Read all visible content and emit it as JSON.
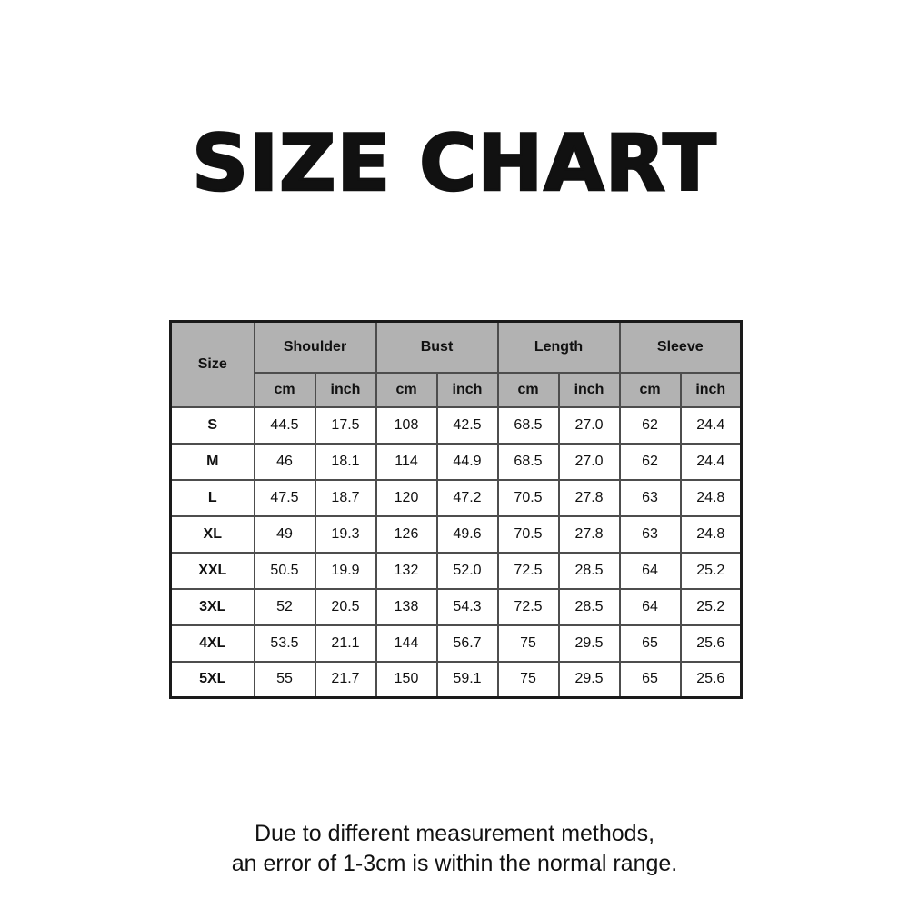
{
  "title": "SIZE CHART",
  "size_table": {
    "corner_header": "Size",
    "group_headers": [
      "Shoulder",
      "Bust",
      "Length",
      "Sleeve"
    ],
    "unit_headers": [
      "cm",
      "inch",
      "cm",
      "inch",
      "cm",
      "inch",
      "cm",
      "inch"
    ],
    "rows": [
      {
        "size": "S",
        "values": [
          "44.5",
          "17.5",
          "108",
          "42.5",
          "68.5",
          "27.0",
          "62",
          "24.4"
        ]
      },
      {
        "size": "M",
        "values": [
          "46",
          "18.1",
          "114",
          "44.9",
          "68.5",
          "27.0",
          "62",
          "24.4"
        ]
      },
      {
        "size": "L",
        "values": [
          "47.5",
          "18.7",
          "120",
          "47.2",
          "70.5",
          "27.8",
          "63",
          "24.8"
        ]
      },
      {
        "size": "XL",
        "values": [
          "49",
          "19.3",
          "126",
          "49.6",
          "70.5",
          "27.8",
          "63",
          "24.8"
        ]
      },
      {
        "size": "XXL",
        "values": [
          "50.5",
          "19.9",
          "132",
          "52.0",
          "72.5",
          "28.5",
          "64",
          "25.2"
        ]
      },
      {
        "size": "3XL",
        "values": [
          "52",
          "20.5",
          "138",
          "54.3",
          "72.5",
          "28.5",
          "64",
          "25.2"
        ]
      },
      {
        "size": "4XL",
        "values": [
          "53.5",
          "21.1",
          "144",
          "56.7",
          "75",
          "29.5",
          "65",
          "25.6"
        ]
      },
      {
        "size": "5XL",
        "values": [
          "55",
          "21.7",
          "150",
          "59.1",
          "75",
          "29.5",
          "65",
          "25.6"
        ]
      }
    ]
  },
  "footer": {
    "line1": "Due to different measurement methods,",
    "line2": "an error of 1-3cm is within the normal range."
  },
  "colors": {
    "header_bg": "#b2b2b2",
    "grid_border": "#4d4d4d",
    "outer_border": "#1a1a1a",
    "text": "#111111",
    "background": "#ffffff"
  },
  "chart_data": {
    "type": "table",
    "title": "SIZE CHART",
    "columns": [
      "Size",
      "Shoulder (cm)",
      "Shoulder (inch)",
      "Bust (cm)",
      "Bust (inch)",
      "Length (cm)",
      "Length (inch)",
      "Sleeve (cm)",
      "Sleeve (inch)"
    ],
    "rows": [
      [
        "S",
        44.5,
        17.5,
        108,
        42.5,
        68.5,
        27.0,
        62,
        24.4
      ],
      [
        "M",
        46,
        18.1,
        114,
        44.9,
        68.5,
        27.0,
        62,
        24.4
      ],
      [
        "L",
        47.5,
        18.7,
        120,
        47.2,
        70.5,
        27.8,
        63,
        24.8
      ],
      [
        "XL",
        49,
        19.3,
        126,
        49.6,
        70.5,
        27.8,
        63,
        24.8
      ],
      [
        "XXL",
        50.5,
        19.9,
        132,
        52.0,
        72.5,
        28.5,
        64,
        25.2
      ],
      [
        "3XL",
        52,
        20.5,
        138,
        54.3,
        72.5,
        28.5,
        64,
        25.2
      ],
      [
        "4XL",
        53.5,
        21.1,
        144,
        56.7,
        75,
        29.5,
        65,
        25.6
      ],
      [
        "5XL",
        55,
        21.7,
        150,
        59.1,
        75,
        29.5,
        65,
        25.6
      ]
    ],
    "note": "Due to different measurement methods, an error of 1-3cm is within the normal range."
  }
}
